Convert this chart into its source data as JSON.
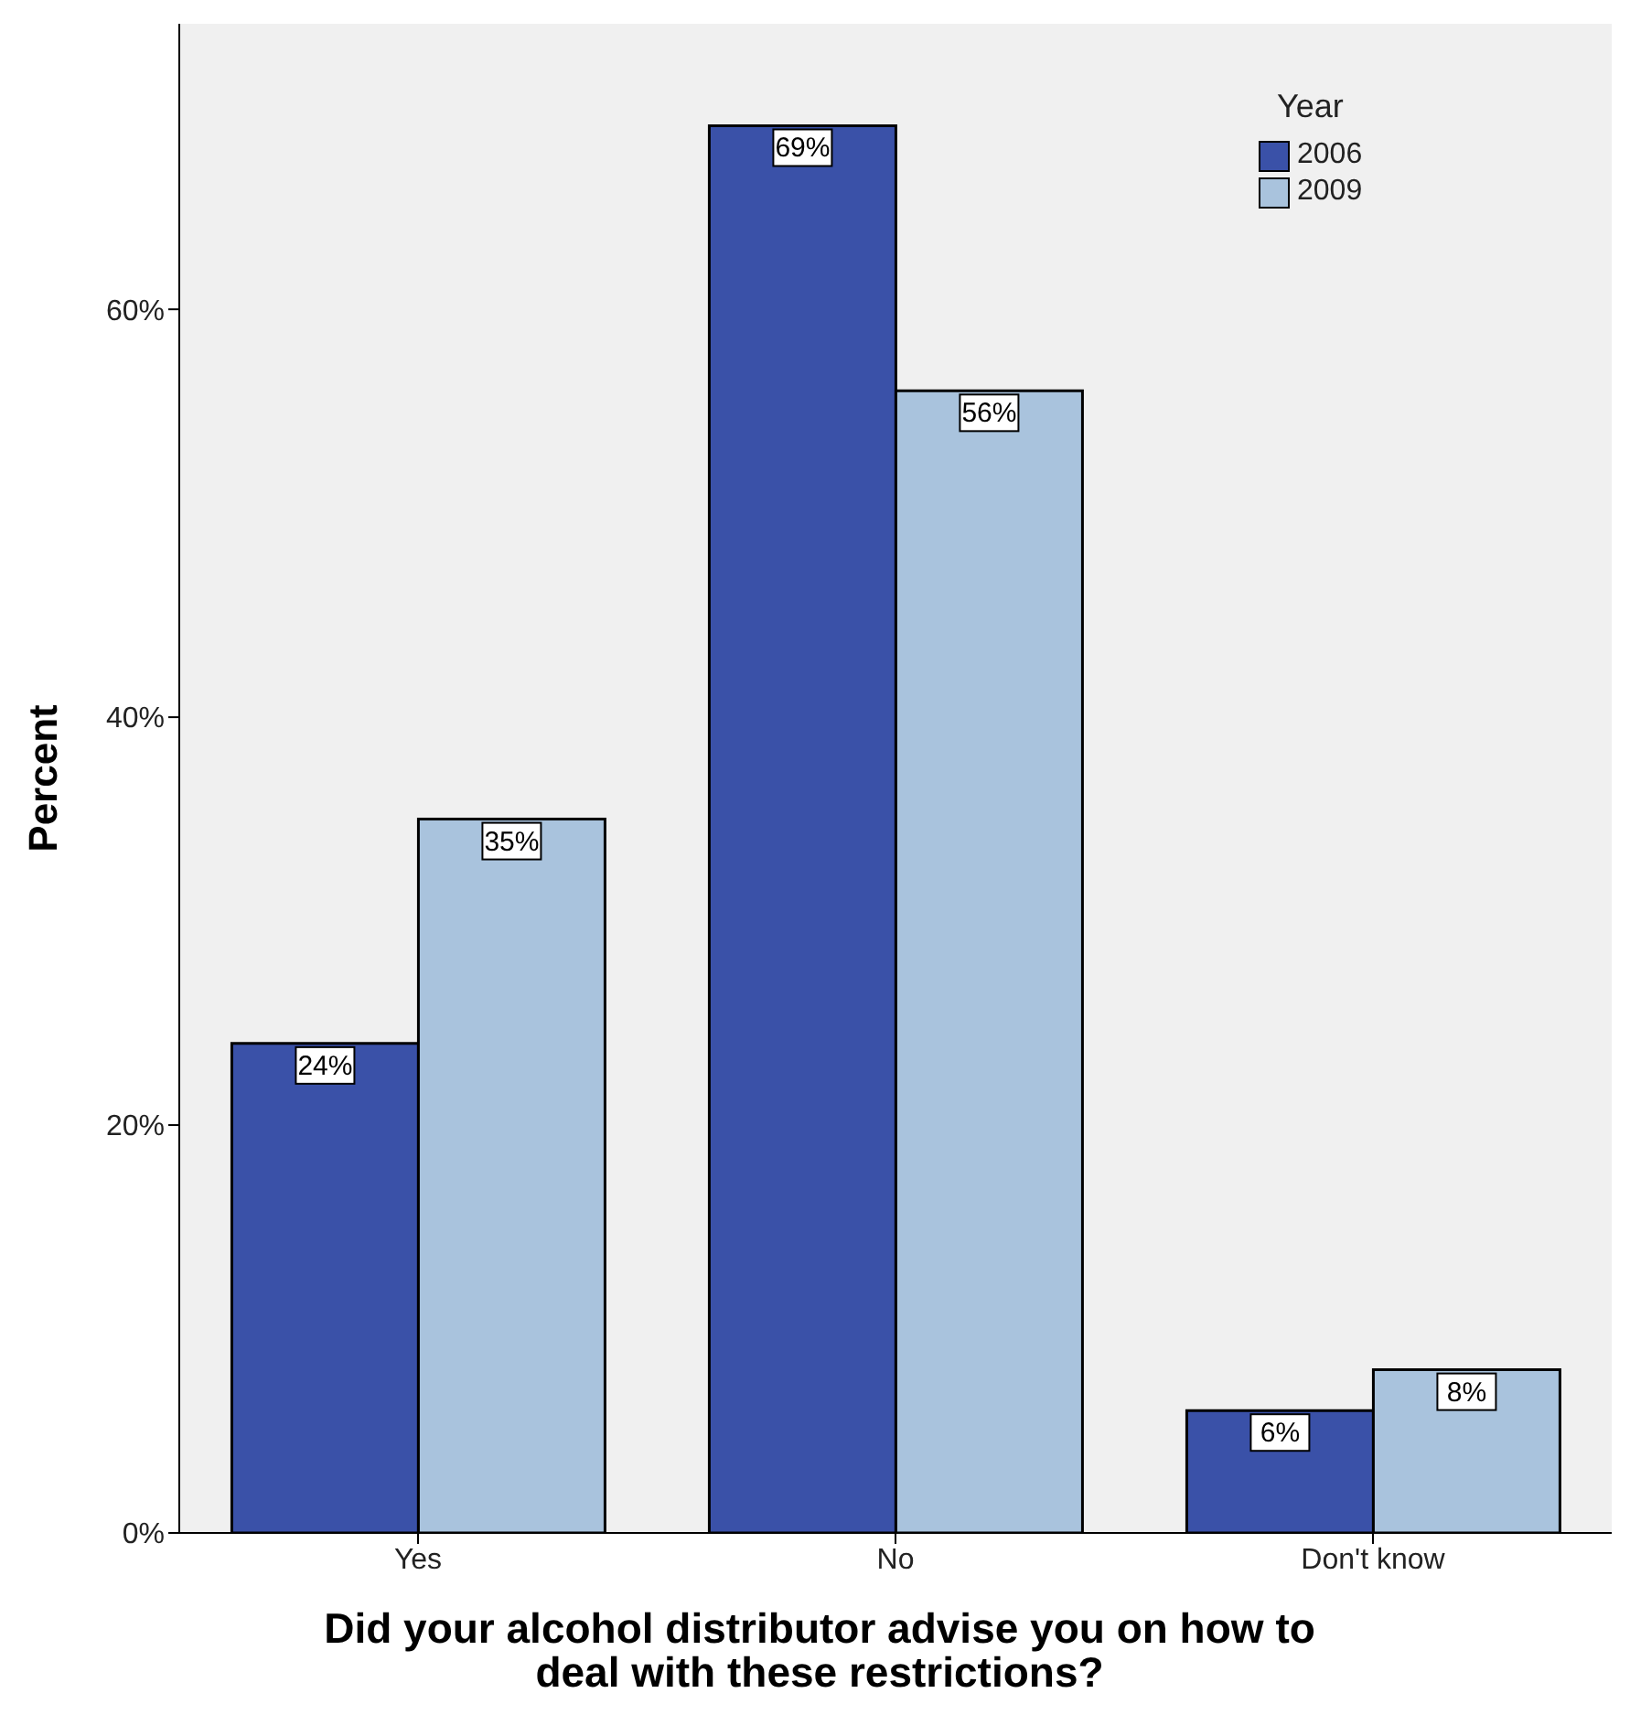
{
  "chart_data": {
    "type": "bar",
    "xlabel": "Did your alcohol distributor advise you on how to deal with these restrictions?",
    "ylabel": "Percent",
    "legend_title": "Year",
    "categories": [
      "Yes",
      "No",
      "Don't know"
    ],
    "series": [
      {
        "name": "2006",
        "color": "#3a51a8",
        "values": [
          24,
          69,
          6
        ],
        "value_labels": [
          "24%",
          "69%",
          "6%"
        ]
      },
      {
        "name": "2009",
        "color": "#a9c3dd",
        "values": [
          35,
          56,
          8
        ],
        "value_labels": [
          "35%",
          "56%",
          "8%"
        ]
      }
    ],
    "ylim": [
      0,
      74
    ],
    "yticks": [
      {
        "value": 0,
        "label": "0%"
      },
      {
        "value": 20,
        "label": "20%"
      },
      {
        "value": 40,
        "label": "40%"
      },
      {
        "value": 60,
        "label": "60%"
      }
    ],
    "grid": false,
    "legend": "top right"
  }
}
